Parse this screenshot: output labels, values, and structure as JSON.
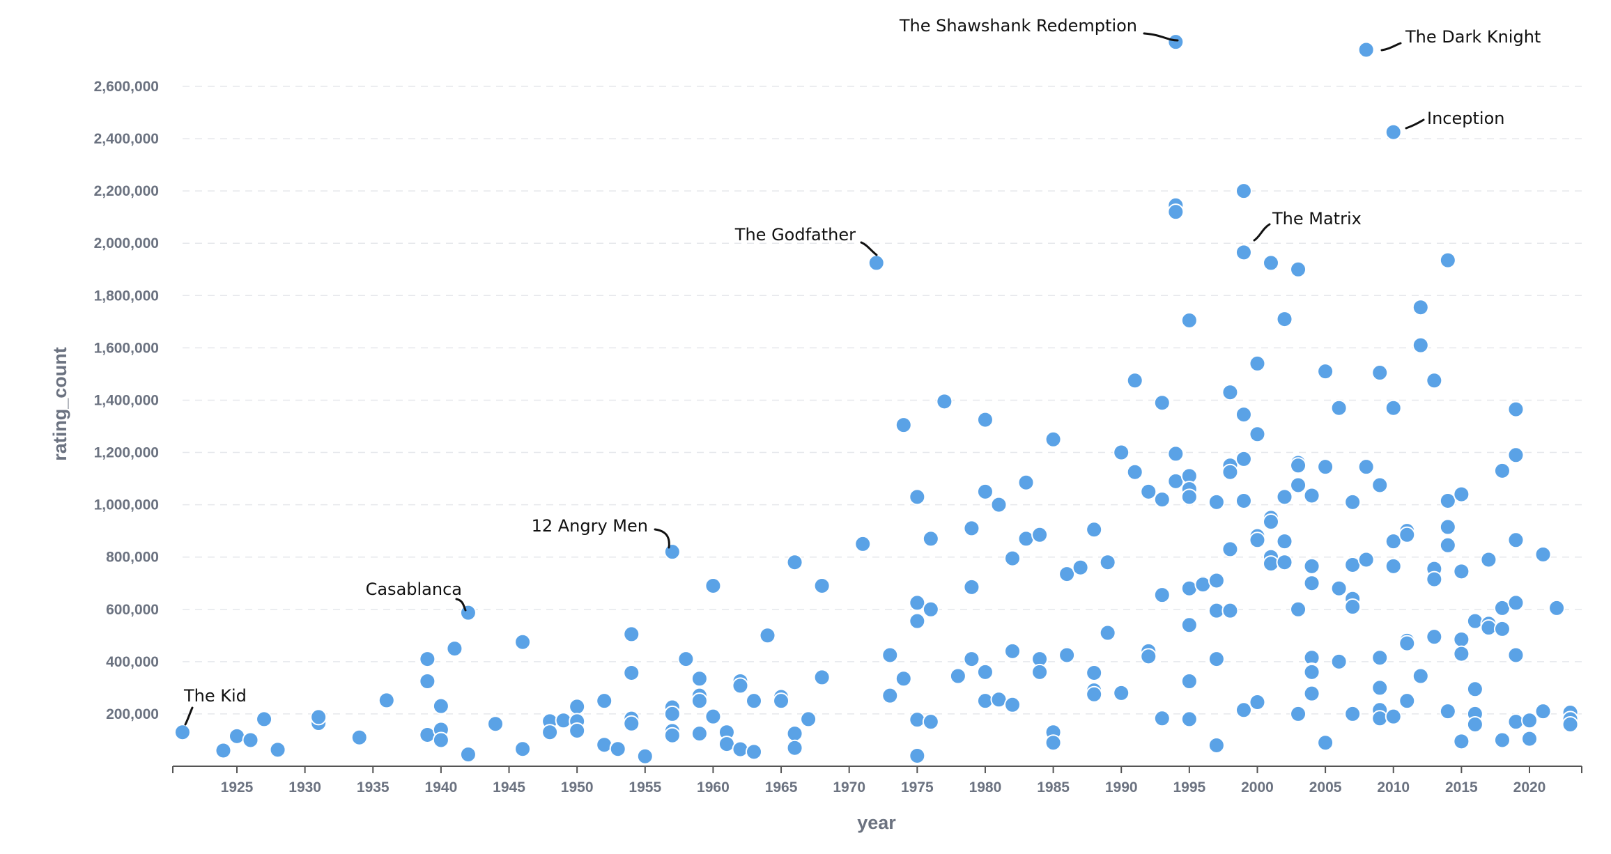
{
  "chart_data": {
    "type": "scatter",
    "title": "",
    "xlabel": "year",
    "ylabel": "rating_count",
    "xlim": [
      1918,
      2023
    ],
    "ylim": [
      0,
      2800000
    ],
    "x_ticks": [
      1925,
      1930,
      1935,
      1940,
      1945,
      1950,
      1955,
      1960,
      1965,
      1970,
      1975,
      1980,
      1985,
      1990,
      1995,
      2000,
      2005,
      2010,
      2015,
      2020
    ],
    "y_ticks": [
      200000,
      400000,
      600000,
      800000,
      1000000,
      1200000,
      1400000,
      1600000,
      1800000,
      2000000,
      2200000,
      2400000,
      2600000
    ],
    "y_tick_labels": [
      "200,000",
      "400,000",
      "600,000",
      "800,000",
      "1,000,000",
      "1,200,000",
      "1,400,000",
      "1,600,000",
      "1,800,000",
      "2,000,000",
      "2,200,000",
      "2,400,000",
      "2,600,000"
    ],
    "grid": "horizontal-dashed",
    "point_color": "#5aa2e6",
    "points": [
      [
        1921,
        130000
      ],
      [
        1924,
        60000
      ],
      [
        1925,
        115000
      ],
      [
        1926,
        100000
      ],
      [
        1927,
        180000
      ],
      [
        1928,
        63000
      ],
      [
        1931,
        165000
      ],
      [
        1931,
        188000
      ],
      [
        1934,
        110000
      ],
      [
        1936,
        252000
      ],
      [
        1939,
        410000
      ],
      [
        1939,
        325000
      ],
      [
        1939,
        120000
      ],
      [
        1940,
        230000
      ],
      [
        1940,
        140000
      ],
      [
        1940,
        100000
      ],
      [
        1941,
        450000
      ],
      [
        1942,
        587000
      ],
      [
        1942,
        45000
      ],
      [
        1944,
        162000
      ],
      [
        1946,
        475000
      ],
      [
        1946,
        66000
      ],
      [
        1948,
        172000
      ],
      [
        1948,
        130000
      ],
      [
        1949,
        175000
      ],
      [
        1950,
        228000
      ],
      [
        1950,
        172000
      ],
      [
        1950,
        136000
      ],
      [
        1952,
        250000
      ],
      [
        1952,
        82000
      ],
      [
        1953,
        70000
      ],
      [
        1953,
        66000
      ],
      [
        1954,
        505000
      ],
      [
        1954,
        357000
      ],
      [
        1954,
        182000
      ],
      [
        1954,
        163000
      ],
      [
        1955,
        40000
      ],
      [
        1955,
        38000
      ],
      [
        1957,
        820000
      ],
      [
        1957,
        225000
      ],
      [
        1957,
        200000
      ],
      [
        1957,
        135000
      ],
      [
        1957,
        118000
      ],
      [
        1958,
        410000
      ],
      [
        1959,
        335000
      ],
      [
        1959,
        270000
      ],
      [
        1959,
        250000
      ],
      [
        1959,
        125000
      ],
      [
        1960,
        690000
      ],
      [
        1960,
        190000
      ],
      [
        1961,
        130000
      ],
      [
        1961,
        85000
      ],
      [
        1962,
        325000
      ],
      [
        1962,
        308000
      ],
      [
        1962,
        65000
      ],
      [
        1963,
        250000
      ],
      [
        1963,
        55000
      ],
      [
        1964,
        500000
      ],
      [
        1965,
        265000
      ],
      [
        1965,
        250000
      ],
      [
        1966,
        780000
      ],
      [
        1966,
        125000
      ],
      [
        1966,
        70000
      ],
      [
        1967,
        180000
      ],
      [
        1968,
        690000
      ],
      [
        1968,
        340000
      ],
      [
        1971,
        850000
      ],
      [
        1972,
        1925000
      ],
      [
        1973,
        425000
      ],
      [
        1973,
        270000
      ],
      [
        1974,
        1305000
      ],
      [
        1974,
        335000
      ],
      [
        1975,
        1030000
      ],
      [
        1975,
        625000
      ],
      [
        1975,
        555000
      ],
      [
        1975,
        178000
      ],
      [
        1975,
        40000
      ],
      [
        1976,
        870000
      ],
      [
        1976,
        600000
      ],
      [
        1976,
        170000
      ],
      [
        1977,
        1395000
      ],
      [
        1978,
        345000
      ],
      [
        1979,
        910000
      ],
      [
        1979,
        685000
      ],
      [
        1979,
        410000
      ],
      [
        1980,
        1325000
      ],
      [
        1980,
        1050000
      ],
      [
        1980,
        360000
      ],
      [
        1980,
        250000
      ],
      [
        1981,
        1000000
      ],
      [
        1981,
        255000
      ],
      [
        1982,
        795000
      ],
      [
        1982,
        440000
      ],
      [
        1982,
        235000
      ],
      [
        1983,
        1085000
      ],
      [
        1983,
        870000
      ],
      [
        1984,
        885000
      ],
      [
        1984,
        410000
      ],
      [
        1984,
        360000
      ],
      [
        1985,
        1250000
      ],
      [
        1985,
        130000
      ],
      [
        1985,
        90000
      ],
      [
        1986,
        735000
      ],
      [
        1986,
        430000
      ],
      [
        1986,
        425000
      ],
      [
        1987,
        760000
      ],
      [
        1988,
        905000
      ],
      [
        1988,
        357000
      ],
      [
        1988,
        290000
      ],
      [
        1988,
        275000
      ],
      [
        1989,
        780000
      ],
      [
        1989,
        510000
      ],
      [
        1990,
        1200000
      ],
      [
        1990,
        280000
      ],
      [
        1991,
        1475000
      ],
      [
        1991,
        1125000
      ],
      [
        1992,
        1050000
      ],
      [
        1992,
        440000
      ],
      [
        1992,
        420000
      ],
      [
        1993,
        1390000
      ],
      [
        1993,
        1020000
      ],
      [
        1993,
        655000
      ],
      [
        1993,
        183000
      ],
      [
        1994,
        2770000
      ],
      [
        1994,
        2145000
      ],
      [
        1994,
        2120000
      ],
      [
        1994,
        1195000
      ],
      [
        1994,
        1090000
      ],
      [
        1995,
        1705000
      ],
      [
        1995,
        1110000
      ],
      [
        1995,
        1060000
      ],
      [
        1995,
        1030000
      ],
      [
        1995,
        680000
      ],
      [
        1995,
        540000
      ],
      [
        1995,
        325000
      ],
      [
        1995,
        180000
      ],
      [
        1996,
        700000
      ],
      [
        1996,
        695000
      ],
      [
        1997,
        1010000
      ],
      [
        1997,
        710000
      ],
      [
        1997,
        595000
      ],
      [
        1997,
        410000
      ],
      [
        1997,
        80000
      ],
      [
        1998,
        1430000
      ],
      [
        1998,
        1150000
      ],
      [
        1998,
        1125000
      ],
      [
        1998,
        830000
      ],
      [
        1998,
        595000
      ],
      [
        1999,
        2200000
      ],
      [
        1999,
        1965000
      ],
      [
        1999,
        1345000
      ],
      [
        1999,
        1175000
      ],
      [
        1999,
        1015000
      ],
      [
        1999,
        215000
      ],
      [
        2000,
        1540000
      ],
      [
        2000,
        1270000
      ],
      [
        2000,
        880000
      ],
      [
        2000,
        865000
      ],
      [
        2000,
        245000
      ],
      [
        2001,
        1925000
      ],
      [
        2001,
        950000
      ],
      [
        2001,
        935000
      ],
      [
        2001,
        800000
      ],
      [
        2001,
        775000
      ],
      [
        2002,
        1710000
      ],
      [
        2002,
        1030000
      ],
      [
        2002,
        860000
      ],
      [
        2002,
        780000
      ],
      [
        2003,
        1900000
      ],
      [
        2003,
        1160000
      ],
      [
        2003,
        1150000
      ],
      [
        2003,
        1075000
      ],
      [
        2003,
        600000
      ],
      [
        2003,
        200000
      ],
      [
        2004,
        1035000
      ],
      [
        2004,
        765000
      ],
      [
        2004,
        700000
      ],
      [
        2004,
        415000
      ],
      [
        2004,
        365000
      ],
      [
        2004,
        360000
      ],
      [
        2004,
        278000
      ],
      [
        2005,
        1510000
      ],
      [
        2005,
        1145000
      ],
      [
        2005,
        90000
      ],
      [
        2006,
        1370000
      ],
      [
        2006,
        1370000
      ],
      [
        2006,
        680000
      ],
      [
        2006,
        400000
      ],
      [
        2007,
        1010000
      ],
      [
        2007,
        770000
      ],
      [
        2007,
        640000
      ],
      [
        2007,
        610000
      ],
      [
        2007,
        200000
      ],
      [
        2008,
        2740000
      ],
      [
        2008,
        1145000
      ],
      [
        2008,
        790000
      ],
      [
        2009,
        1505000
      ],
      [
        2009,
        1075000
      ],
      [
        2009,
        415000
      ],
      [
        2009,
        300000
      ],
      [
        2009,
        215000
      ],
      [
        2009,
        183000
      ],
      [
        2010,
        2425000
      ],
      [
        2010,
        1370000
      ],
      [
        2010,
        860000
      ],
      [
        2010,
        765000
      ],
      [
        2010,
        190000
      ],
      [
        2011,
        900000
      ],
      [
        2011,
        885000
      ],
      [
        2011,
        480000
      ],
      [
        2011,
        470000
      ],
      [
        2011,
        250000
      ],
      [
        2012,
        1755000
      ],
      [
        2012,
        1610000
      ],
      [
        2012,
        345000
      ],
      [
        2013,
        1475000
      ],
      [
        2013,
        755000
      ],
      [
        2013,
        715000
      ],
      [
        2013,
        495000
      ],
      [
        2014,
        1935000
      ],
      [
        2014,
        1015000
      ],
      [
        2014,
        915000
      ],
      [
        2014,
        845000
      ],
      [
        2014,
        210000
      ],
      [
        2015,
        1040000
      ],
      [
        2015,
        745000
      ],
      [
        2015,
        485000
      ],
      [
        2015,
        430000
      ],
      [
        2015,
        95000
      ],
      [
        2016,
        555000
      ],
      [
        2016,
        295000
      ],
      [
        2016,
        200000
      ],
      [
        2016,
        160000
      ],
      [
        2017,
        790000
      ],
      [
        2017,
        545000
      ],
      [
        2017,
        530000
      ],
      [
        2018,
        1130000
      ],
      [
        2018,
        605000
      ],
      [
        2018,
        525000
      ],
      [
        2018,
        100000
      ],
      [
        2019,
        1365000
      ],
      [
        2019,
        1190000
      ],
      [
        2019,
        865000
      ],
      [
        2019,
        625000
      ],
      [
        2019,
        425000
      ],
      [
        2019,
        170000
      ],
      [
        2020,
        175000
      ],
      [
        2020,
        105000
      ],
      [
        2021,
        810000
      ],
      [
        2021,
        210000
      ],
      [
        2022,
        605000
      ],
      [
        2023,
        205000
      ],
      [
        2023,
        180000
      ],
      [
        2023,
        160000
      ]
    ],
    "annotations": [
      {
        "label": "The Shawshank Redemption",
        "x": 1994,
        "y": 2770000
      },
      {
        "label": "The Dark Knight",
        "x": 2008,
        "y": 2740000
      },
      {
        "label": "Inception",
        "x": 2010,
        "y": 2425000
      },
      {
        "label": "The Matrix",
        "x": 1999,
        "y": 1965000
      },
      {
        "label": "The Godfather",
        "x": 1972,
        "y": 1925000
      },
      {
        "label": "12 Angry Men",
        "x": 1957,
        "y": 820000
      },
      {
        "label": "Casablanca",
        "x": 1942,
        "y": 587000
      },
      {
        "label": "The Kid",
        "x": 1921,
        "y": 130000
      }
    ]
  }
}
